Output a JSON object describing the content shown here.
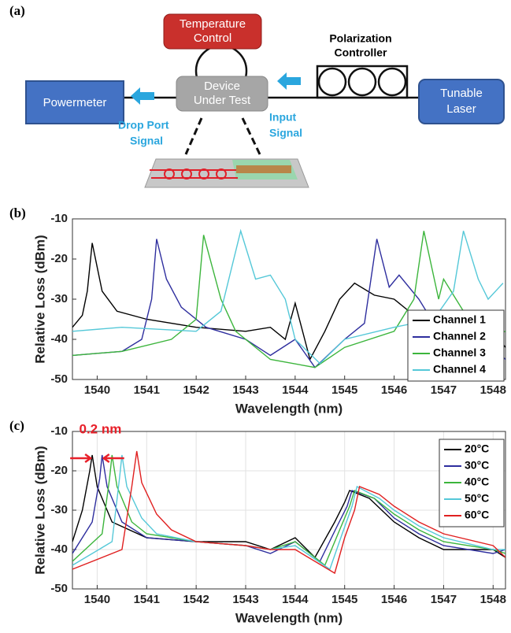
{
  "diagram": {
    "panel": "(a)",
    "temperature_control": [
      "Temperature",
      "Control"
    ],
    "polarization_controller": [
      "Polarization",
      "Controller"
    ],
    "device_under_test": [
      "Device",
      "Under Test"
    ],
    "powermeter": "Powermeter",
    "tunable_laser": [
      "Tunable",
      "Laser"
    ],
    "drop_port_signal": [
      "Drop Port",
      "Signal"
    ],
    "input_signal": [
      "Input",
      "Signal"
    ]
  },
  "chart_data": [
    {
      "type": "line",
      "panel": "(b)",
      "x_label": "Wavelength (nm)",
      "y_label": "Relative Loss (dBm)",
      "xlim": [
        1539.5,
        1548.25
      ],
      "ylim": [
        -50,
        -10
      ],
      "xticks": [
        1540,
        1541,
        1542,
        1543,
        1544,
        1545,
        1546,
        1547,
        1548
      ],
      "yticks": [
        -50,
        -40,
        -30,
        -20,
        -10
      ],
      "grid": false,
      "legend": "lower right",
      "series": [
        {
          "name": "Channel 1",
          "color": "#000000",
          "x": [
            1539.5,
            1539.7,
            1539.8,
            1539.9,
            1540.0,
            1540.1,
            1540.4,
            1541,
            1542,
            1543,
            1543.5,
            1543.8,
            1544.0,
            1544.3,
            1544.6,
            1544.9,
            1545.2,
            1545.6,
            1546,
            1546.5,
            1547,
            1548,
            1548.25
          ],
          "values": [
            -37,
            -34,
            -28,
            -16,
            -22,
            -28,
            -33,
            -35,
            -37,
            -38,
            -37,
            -40,
            -31,
            -45,
            -38,
            -30,
            -26,
            -29,
            -30,
            -35,
            -37,
            -38,
            -42
          ]
        },
        {
          "name": "Channel 2",
          "color": "#2e2e9e",
          "x": [
            1539.5,
            1540.5,
            1540.9,
            1541.1,
            1541.2,
            1541.4,
            1541.7,
            1542.2,
            1543,
            1543.5,
            1544,
            1544.4,
            1545,
            1545.4,
            1545.65,
            1545.9,
            1546.1,
            1546.5,
            1547,
            1548,
            1548.25
          ],
          "values": [
            -44,
            -43,
            -40,
            -30,
            -15,
            -25,
            -32,
            -37,
            -40,
            -44,
            -40,
            -47,
            -40,
            -36,
            -15,
            -27,
            -24,
            -30,
            -40,
            -42,
            -45
          ]
        },
        {
          "name": "Channel 3",
          "color": "#3cb53c",
          "x": [
            1539.5,
            1540.5,
            1541.5,
            1542,
            1542.15,
            1542.5,
            1542.8,
            1543.5,
            1544.4,
            1545,
            1546,
            1546.4,
            1546.6,
            1546.9,
            1547.0,
            1547.4,
            1547.8,
            1548.25
          ],
          "values": [
            -44,
            -43,
            -40,
            -35,
            -14,
            -30,
            -38,
            -45,
            -47,
            -42,
            -38,
            -30,
            -13,
            -30,
            -25,
            -33,
            -40,
            -38
          ]
        },
        {
          "name": "Channel 4",
          "color": "#55c8d8",
          "x": [
            1539.5,
            1540.5,
            1542,
            1542.5,
            1542.9,
            1543.2,
            1543.5,
            1543.8,
            1544,
            1544.5,
            1545,
            1546,
            1546.8,
            1547.2,
            1547.4,
            1547.7,
            1547.9,
            1548.2
          ],
          "values": [
            -38,
            -37,
            -38,
            -33,
            -13,
            -25,
            -24,
            -30,
            -40,
            -46,
            -40,
            -37,
            -35,
            -28,
            -13,
            -25,
            -30,
            -26
          ]
        }
      ]
    },
    {
      "type": "line",
      "panel": "(c)",
      "x_label": "Wavelength (nm)",
      "y_label": "Relative Loss (dBm)",
      "xlim": [
        1539.5,
        1548.25
      ],
      "ylim": [
        -50,
        -10
      ],
      "xticks": [
        1540,
        1541,
        1542,
        1543,
        1544,
        1545,
        1546,
        1547,
        1548
      ],
      "yticks": [
        -50,
        -40,
        -30,
        -20,
        -10
      ],
      "grid": true,
      "legend": "upper right",
      "annotation": {
        "text": "0.2 nm",
        "color": "#e8202a"
      },
      "series": [
        {
          "name": "20°C",
          "color": "#000000",
          "x": [
            1539.5,
            1539.7,
            1539.85,
            1539.9,
            1540.0,
            1540.3,
            1541,
            1542,
            1543,
            1543.5,
            1544,
            1544.4,
            1544.8,
            1545.0,
            1545.1,
            1545.5,
            1546,
            1546.5,
            1547,
            1548,
            1548.25
          ],
          "values": [
            -38,
            -30,
            -20,
            -16,
            -24,
            -33,
            -37,
            -38,
            -38,
            -40,
            -37,
            -42,
            -33,
            -28,
            -25,
            -27,
            -33,
            -37,
            -40,
            -40,
            -42
          ]
        },
        {
          "name": "30°C",
          "color": "#2e2e9e",
          "x": [
            1539.5,
            1539.9,
            1540.05,
            1540.1,
            1540.2,
            1540.5,
            1541,
            1542,
            1543,
            1543.5,
            1544,
            1544.5,
            1544.85,
            1545.05,
            1545.15,
            1545.6,
            1546,
            1546.5,
            1547,
            1548,
            1548.25
          ],
          "values": [
            -41,
            -33,
            -22,
            -16,
            -24,
            -33,
            -37,
            -38,
            -39,
            -41,
            -38,
            -43,
            -34,
            -29,
            -25,
            -27,
            -32,
            -36,
            -39,
            -41,
            -40
          ]
        },
        {
          "name": "40°C",
          "color": "#3cb53c",
          "x": [
            1539.5,
            1540.1,
            1540.25,
            1540.3,
            1540.4,
            1540.7,
            1541,
            1542,
            1543,
            1543.5,
            1544,
            1544.6,
            1544.9,
            1545.1,
            1545.2,
            1545.6,
            1546,
            1546.5,
            1547,
            1548,
            1548.25
          ],
          "values": [
            -43,
            -36,
            -22,
            -16,
            -24,
            -33,
            -36,
            -38,
            -39,
            -40,
            -38,
            -44,
            -35,
            -29,
            -25,
            -27,
            -31,
            -35,
            -38,
            -40,
            -41
          ]
        },
        {
          "name": "50°C",
          "color": "#55c8d8",
          "x": [
            1539.5,
            1540.3,
            1540.45,
            1540.5,
            1540.6,
            1540.9,
            1541.2,
            1542,
            1543,
            1543.5,
            1544,
            1544.7,
            1544.95,
            1545.15,
            1545.25,
            1545.7,
            1546,
            1546.5,
            1547,
            1548,
            1548.25
          ],
          "values": [
            -44,
            -38,
            -22,
            -16,
            -24,
            -32,
            -36,
            -38,
            -39,
            -40,
            -39,
            -45,
            -36,
            -29,
            -24,
            -27,
            -30,
            -34,
            -37,
            -40,
            -40
          ]
        },
        {
          "name": "60°C",
          "color": "#e02020",
          "x": [
            1539.5,
            1540.5,
            1540.7,
            1540.8,
            1540.9,
            1541.2,
            1541.5,
            1542,
            1543,
            1543.5,
            1544,
            1544.8,
            1545.0,
            1545.2,
            1545.3,
            1545.7,
            1546,
            1546.5,
            1547,
            1548,
            1548.25
          ],
          "values": [
            -45,
            -40,
            -24,
            -15,
            -23,
            -31,
            -35,
            -38,
            -39,
            -40,
            -40,
            -46,
            -37,
            -30,
            -24,
            -26,
            -29,
            -33,
            -36,
            -39,
            -42
          ]
        }
      ]
    }
  ]
}
